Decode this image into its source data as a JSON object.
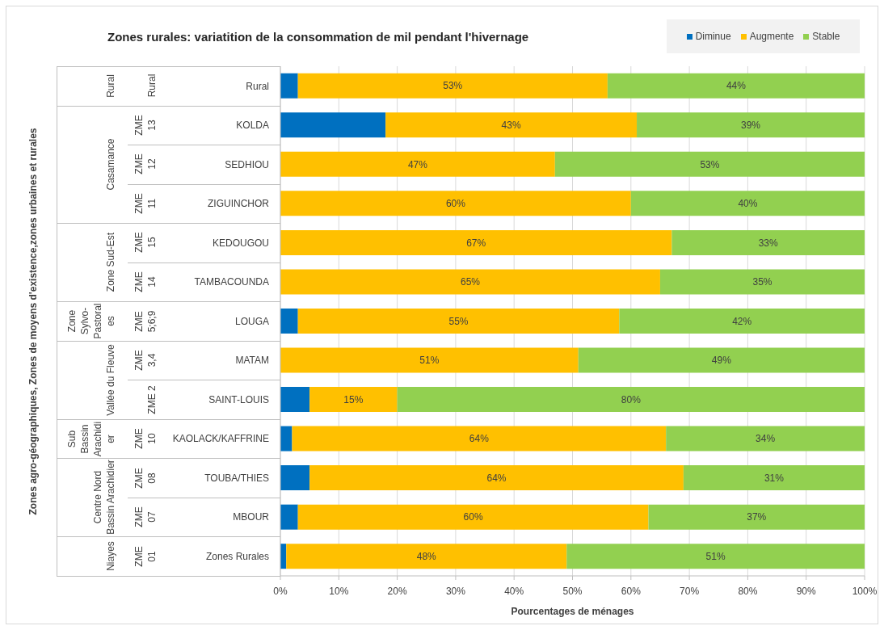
{
  "chart_data": {
    "type": "bar",
    "orientation": "horizontal",
    "stacked": true,
    "title": "Zones rurales: variatition de la consommation de mil pendant l'hivernage",
    "xlabel": "Pourcentages de ménages",
    "categories": [
      "Rural",
      "KOLDA",
      "SEDHIOU",
      "ZIGUINCHOR",
      "KEDOUGOU",
      "TAMBACOUNDA",
      "LOUGA",
      "MATAM",
      "SAINT-LOUIS",
      "KAOLACK/KAFFRINE",
      "TOUBA/THIES",
      "MBOUR",
      "Zones Rurales"
    ],
    "series": [
      {
        "name": "Diminue",
        "color": "#0070c0",
        "values": [
          3,
          18,
          0,
          0,
          0,
          0,
          3,
          0,
          5,
          2,
          5,
          3,
          1
        ]
      },
      {
        "name": "Augmente",
        "color": "#ffc000",
        "values": [
          53,
          43,
          47,
          60,
          67,
          65,
          55,
          51,
          15,
          64,
          64,
          60,
          48
        ],
        "value_labels": [
          "53%",
          "43%",
          "47%",
          "60%",
          "67%",
          "65%",
          "55%",
          "51%",
          "15%",
          "64%",
          "64%",
          "60%",
          "48%"
        ]
      },
      {
        "name": "Stable",
        "color": "#92d050",
        "values": [
          44,
          39,
          53,
          40,
          33,
          35,
          42,
          49,
          80,
          34,
          31,
          37,
          51
        ],
        "value_labels": [
          "44%",
          "39%",
          "53%",
          "40%",
          "33%",
          "35%",
          "42%",
          "49%",
          "80%",
          "34%",
          "31%",
          "37%",
          "51%"
        ]
      }
    ],
    "xlim": [
      0,
      100
    ],
    "xticks": [
      {
        "value": 0,
        "label": "0%"
      },
      {
        "value": 10,
        "label": "10%"
      },
      {
        "value": 20,
        "label": "20%"
      },
      {
        "value": 30,
        "label": "30%"
      },
      {
        "value": 40,
        "label": "40%"
      },
      {
        "value": 50,
        "label": "50%"
      },
      {
        "value": 60,
        "label": "60%"
      },
      {
        "value": 70,
        "label": "70%"
      },
      {
        "value": 80,
        "label": "80%"
      },
      {
        "value": 90,
        "label": "90%"
      },
      {
        "value": 100,
        "label": "100%"
      }
    ],
    "grid": "x",
    "legend": "top right",
    "annotations": [
      "Zones agro-géographiques, Zones de moyens d'existence,zones urbaines et rurales",
      "Rural",
      "Casamance",
      "Zone Sud-Est",
      "Zone Sylvo-Pastorales",
      "Vallée du Fleuve",
      "Sub Bassin Arachidier",
      "Centre Nord Bassin Arachidier",
      "Niayes",
      "Rural",
      "ZME 13",
      "ZME 12",
      "ZME 11",
      "ZME 15",
      "ZME 14",
      "ZME 5;6;9",
      "ZME 3,4",
      "ZME 2",
      "ZME 10",
      "ZME 08",
      "ZME 07",
      "ZME 01"
    ]
  }
}
